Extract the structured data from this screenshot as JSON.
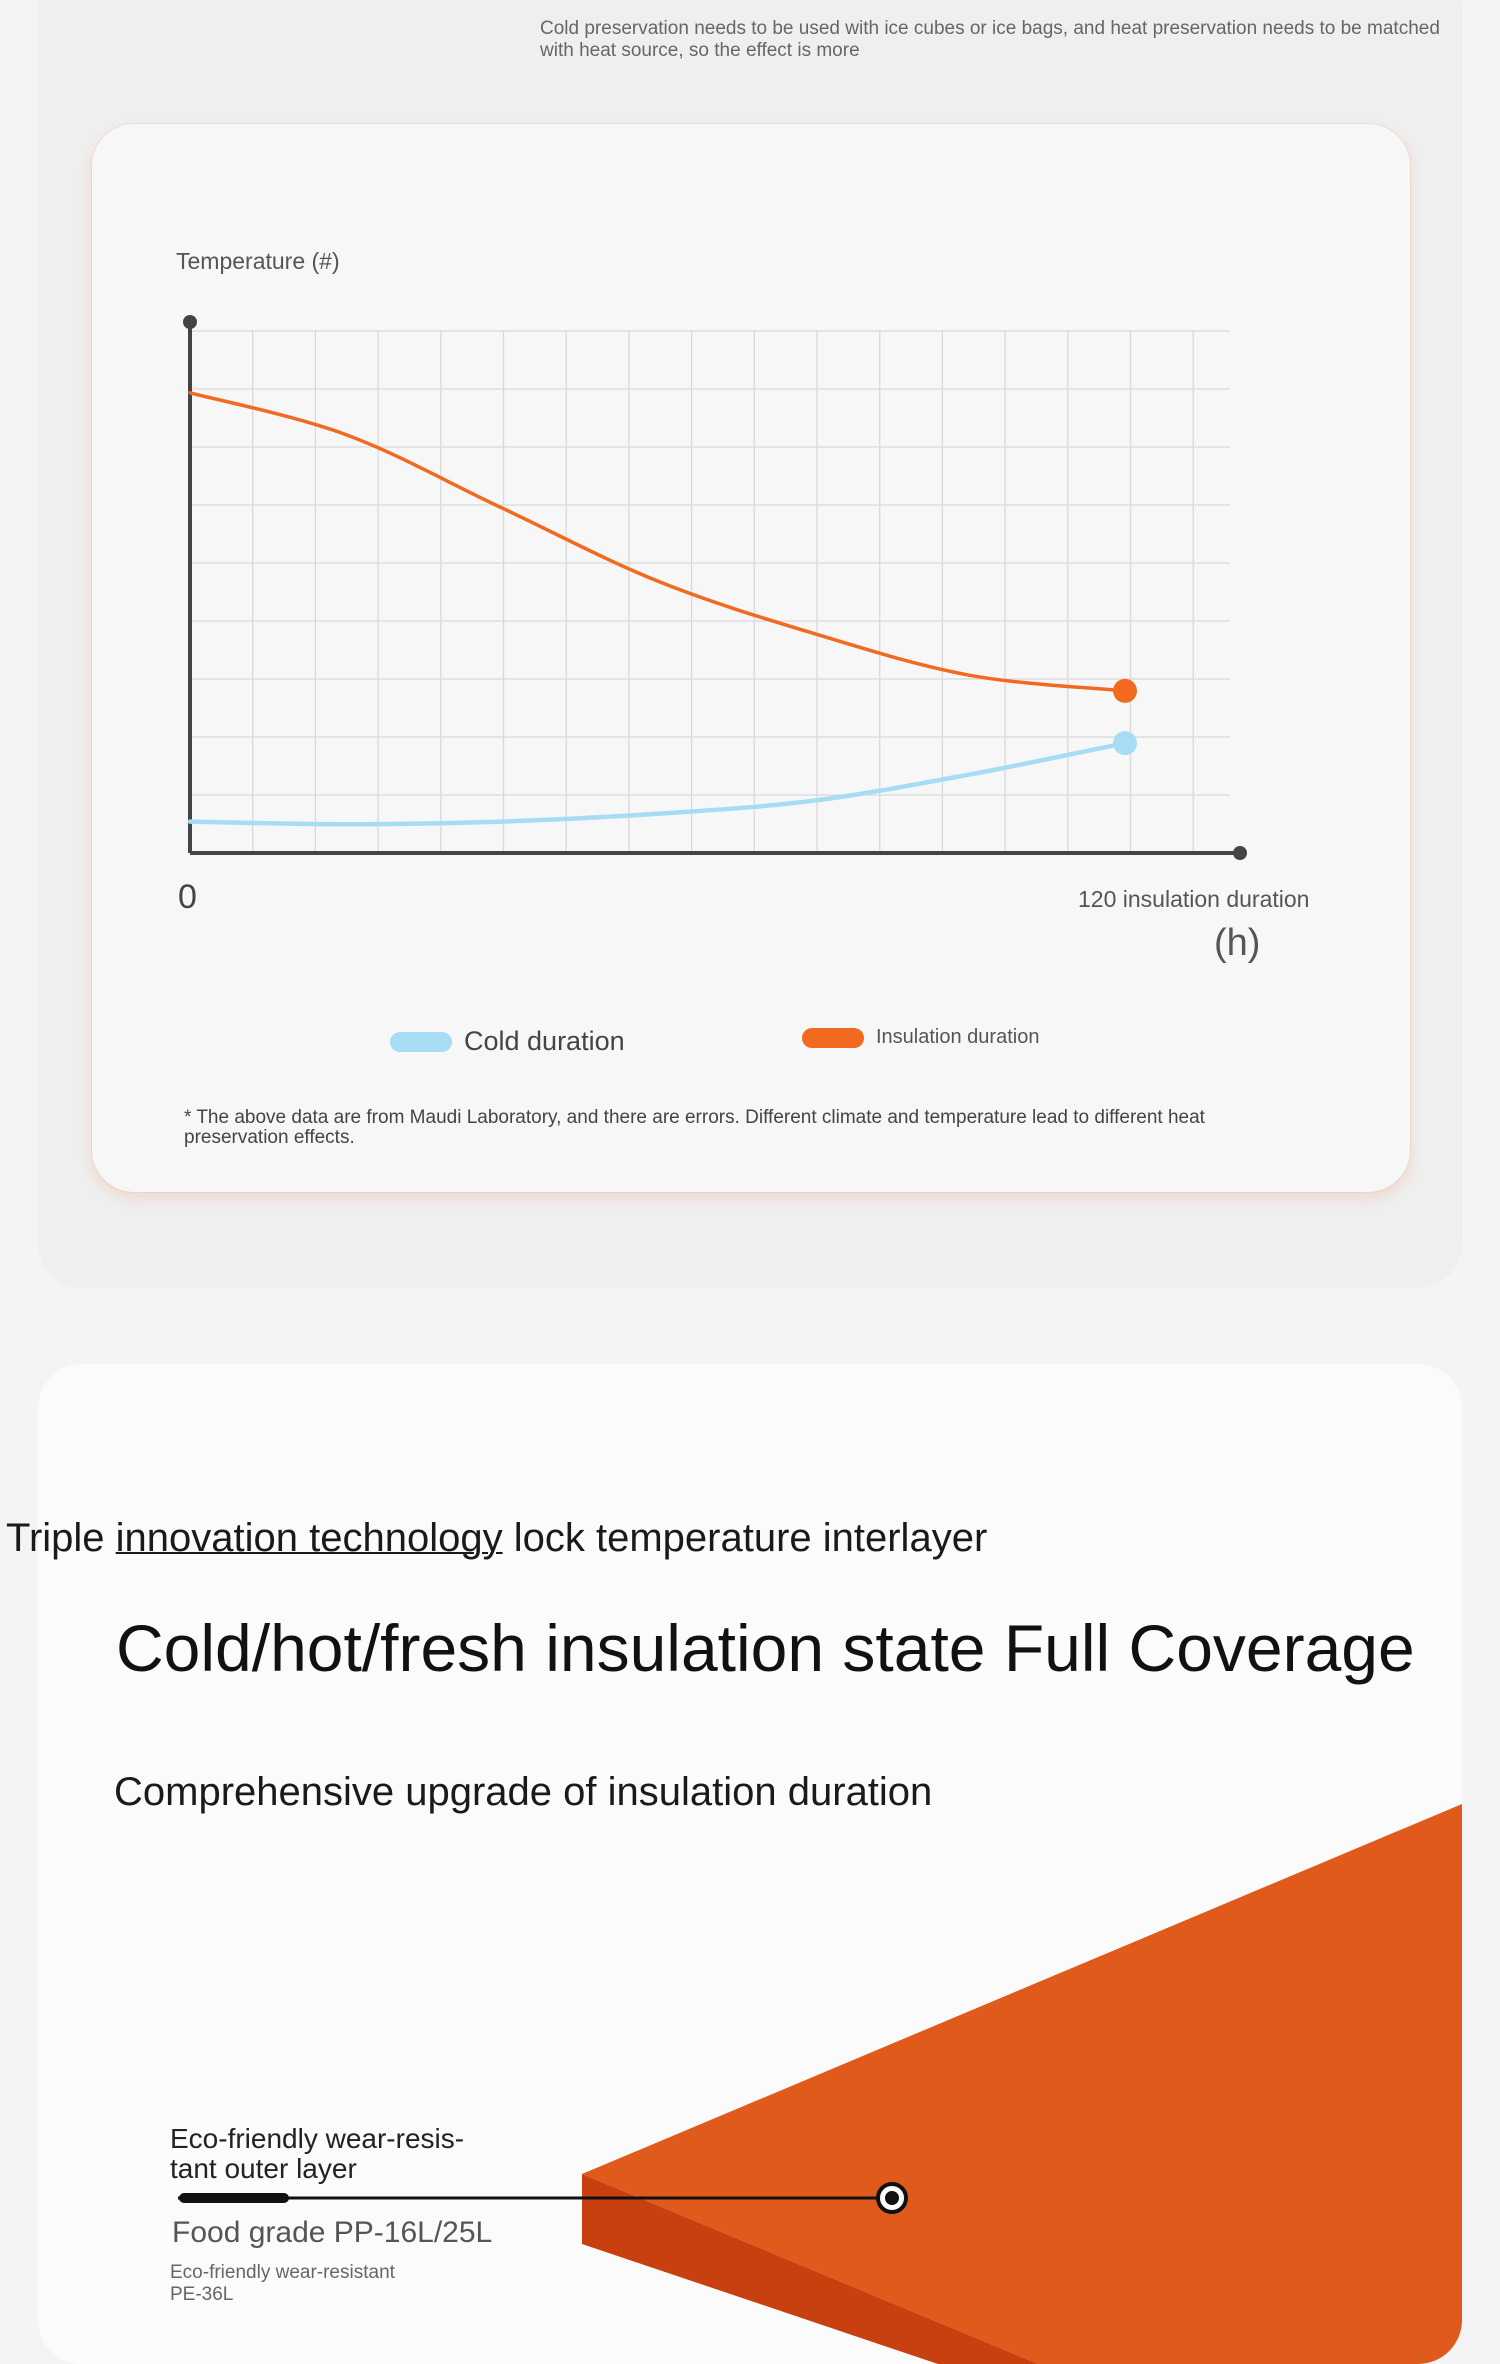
{
  "top_note": "Cold preservation needs to be used with ice cubes or ice bags, and heat preservation needs to be matched with heat source, so the effect is more",
  "chart": {
    "ylabel": "Temperature (#)",
    "x_origin": "0",
    "x_end_label": "120 insulation duration",
    "x_unit": "(h)",
    "legend": {
      "cold": "Cold duration",
      "insulation": "Insulation duration"
    },
    "colors": {
      "cold": "#a8dcf4",
      "insulation": "#f26a1f",
      "axis": "#444444",
      "grid": "#d9d9d9"
    },
    "footnote": "* The above data are from Maudi Laboratory, and there are errors. Different climate and temperature lead to different heat preservation effects."
  },
  "chart_data": {
    "type": "line",
    "x": [
      0,
      20,
      40,
      60,
      80,
      100,
      120
    ],
    "xlim": [
      0,
      120
    ],
    "ylim": [
      0,
      10
    ],
    "grid": true,
    "legend_position": "bottom",
    "series": [
      {
        "name": "Insulation duration",
        "values": [
          8.8,
          8.0,
          6.6,
          5.2,
          4.2,
          3.4,
          3.1
        ]
      },
      {
        "name": "Cold duration",
        "values": [
          0.6,
          0.55,
          0.6,
          0.75,
          1.0,
          1.5,
          2.1
        ]
      }
    ]
  },
  "section2": {
    "line1_pre": "Triple ",
    "line1_u": "innovation technology",
    "line1_post": " lock temperature interlayer",
    "title": "Cold/hot/fresh insulation state Full Coverage",
    "subtitle": "Comprehensive upgrade of insulation duration",
    "layer_outer": "Eco-friendly wear-resis-\ntant outer layer",
    "layer_food": "Food grade PP-16L/25L",
    "layer_pe": "Eco-friendly wear-resistant\nPE-36L",
    "colors": {
      "slab": "#e05a1b",
      "slab_side": "#c83f10"
    }
  }
}
